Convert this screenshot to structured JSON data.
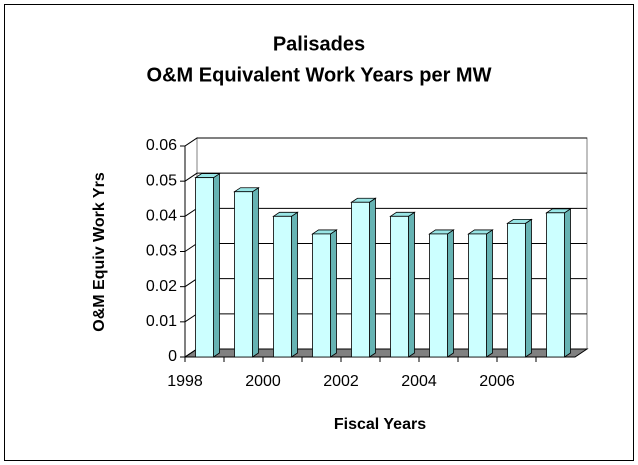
{
  "chart_data": {
    "type": "bar3d",
    "title": "Palisades",
    "subtitle": "O&M Equivalent Work Years per MW",
    "x_label": "Fiscal Years",
    "y_label": "O&M Equiv Work Yrs",
    "categories": [
      "1998",
      null,
      "2000",
      null,
      "2002",
      null,
      "2004",
      null,
      "2006",
      null
    ],
    "values": [
      0.051,
      0.047,
      0.04,
      0.035,
      0.044,
      0.04,
      0.035,
      0.035,
      0.038,
      0.041
    ],
    "color": "#ccffff",
    "ylim": [
      0,
      0.06
    ],
    "yticks": [
      0,
      0.01,
      0.02,
      0.03,
      0.04,
      0.05,
      0.06
    ],
    "grid": true
  }
}
